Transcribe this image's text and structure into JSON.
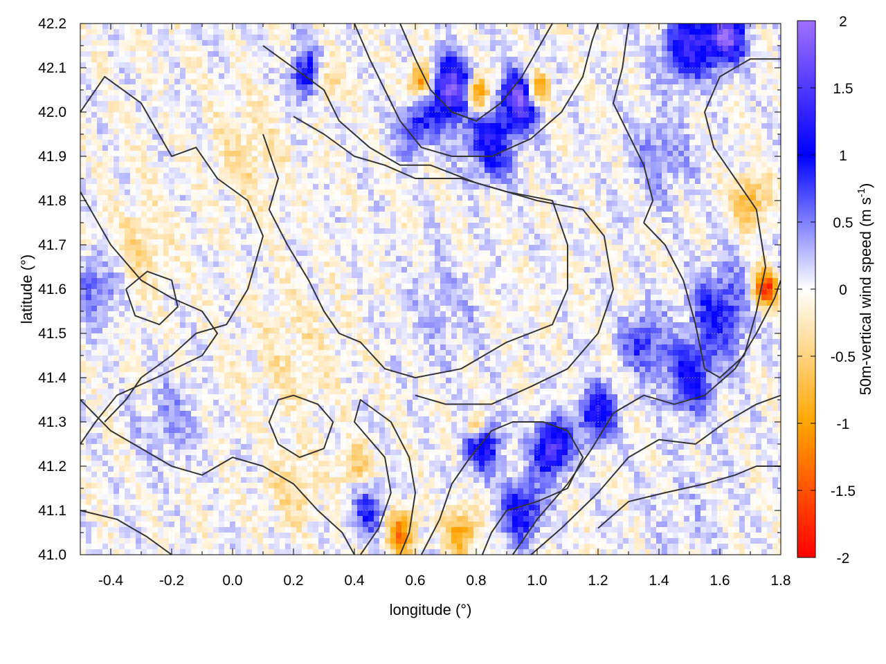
{
  "chart_data": {
    "type": "heatmap",
    "xlabel": "longitude (°)",
    "ylabel": "latitude (°)",
    "colorbar_label": "50m-vertical wind speed (m s",
    "colorbar_label_sup": "-1",
    "colorbar_label_end": ")",
    "xlim": [
      -0.5,
      1.8
    ],
    "ylim": [
      41.0,
      42.2
    ],
    "clim": [
      -2,
      2
    ],
    "x_ticks": [
      {
        "v": -0.4,
        "label": "-0.4"
      },
      {
        "v": -0.2,
        "label": "-0.2"
      },
      {
        "v": 0.0,
        "label": "0.0"
      },
      {
        "v": 0.2,
        "label": "0.2"
      },
      {
        "v": 0.4,
        "label": "0.4"
      },
      {
        "v": 0.6,
        "label": "0.6"
      },
      {
        "v": 0.8,
        "label": "0.8"
      },
      {
        "v": 1.0,
        "label": "1.0"
      },
      {
        "v": 1.2,
        "label": "1.2"
      },
      {
        "v": 1.4,
        "label": "1.4"
      },
      {
        "v": 1.6,
        "label": "1.6"
      },
      {
        "v": 1.8,
        "label": "1.8"
      }
    ],
    "y_ticks": [
      {
        "v": 41.0,
        "label": "41.0"
      },
      {
        "v": 41.1,
        "label": "41.1"
      },
      {
        "v": 41.2,
        "label": "41.2"
      },
      {
        "v": 41.3,
        "label": "41.3"
      },
      {
        "v": 41.4,
        "label": "41.4"
      },
      {
        "v": 41.5,
        "label": "41.5"
      },
      {
        "v": 41.6,
        "label": "41.6"
      },
      {
        "v": 41.7,
        "label": "41.7"
      },
      {
        "v": 41.8,
        "label": "41.8"
      },
      {
        "v": 41.9,
        "label": "41.9"
      },
      {
        "v": 42.0,
        "label": "42.0"
      },
      {
        "v": 42.1,
        "label": "42.1"
      },
      {
        "v": 42.2,
        "label": "42.2"
      }
    ],
    "colorbar_ticks": [
      {
        "v": 2,
        "label": "2"
      },
      {
        "v": 1.5,
        "label": "1.5"
      },
      {
        "v": 1,
        "label": "1"
      },
      {
        "v": 0.5,
        "label": "0.5"
      },
      {
        "v": 0,
        "label": "0"
      },
      {
        "v": -0.5,
        "label": "-0.5"
      },
      {
        "v": -1,
        "label": "-1"
      },
      {
        "v": -1.5,
        "label": "-1.5"
      },
      {
        "v": -2,
        "label": "-2"
      }
    ],
    "colormap": [
      {
        "v": -2.0,
        "color": "#ff0000"
      },
      {
        "v": -1.0,
        "color": "#ffa500"
      },
      {
        "v": 0.0,
        "color": "#ffffff"
      },
      {
        "v": 1.0,
        "color": "#0000ff"
      },
      {
        "v": 2.0,
        "color": "#a070ff"
      }
    ],
    "grid": true,
    "contour_color": "#333333",
    "blobs": [
      {
        "x": 0.72,
        "y": 42.05,
        "r": 0.07,
        "v": 1.9
      },
      {
        "x": 0.95,
        "y": 42.03,
        "r": 0.06,
        "v": 1.9
      },
      {
        "x": 0.8,
        "y": 42.04,
        "r": 0.04,
        "v": -1.7
      },
      {
        "x": 1.0,
        "y": 42.05,
        "r": 0.04,
        "v": -1.6
      },
      {
        "x": 0.62,
        "y": 42.07,
        "r": 0.04,
        "v": -1.3
      },
      {
        "x": 0.3,
        "y": 42.07,
        "r": 0.05,
        "v": -0.9
      },
      {
        "x": 0.25,
        "y": 42.08,
        "r": 0.06,
        "v": 1.2
      },
      {
        "x": 0.85,
        "y": 41.93,
        "r": 0.08,
        "v": 1.1
      },
      {
        "x": 0.6,
        "y": 41.96,
        "r": 0.06,
        "v": 0.9
      },
      {
        "x": 1.5,
        "y": 42.15,
        "r": 0.08,
        "v": 1.3
      },
      {
        "x": 1.62,
        "y": 42.17,
        "r": 0.06,
        "v": 1.8
      },
      {
        "x": 1.7,
        "y": 41.8,
        "r": 0.06,
        "v": -0.8
      },
      {
        "x": 1.6,
        "y": 41.55,
        "r": 0.1,
        "v": 0.9
      },
      {
        "x": 1.5,
        "y": 41.4,
        "r": 0.08,
        "v": 1.0
      },
      {
        "x": 1.35,
        "y": 41.48,
        "r": 0.07,
        "v": 0.8
      },
      {
        "x": 1.2,
        "y": 41.32,
        "r": 0.06,
        "v": 1.3
      },
      {
        "x": 1.05,
        "y": 41.24,
        "r": 0.06,
        "v": 1.6
      },
      {
        "x": 0.82,
        "y": 41.25,
        "r": 0.06,
        "v": 1.2
      },
      {
        "x": 0.8,
        "y": 41.29,
        "r": 0.03,
        "v": -1.3
      },
      {
        "x": 0.95,
        "y": 41.1,
        "r": 0.07,
        "v": 1.1
      },
      {
        "x": 0.75,
        "y": 41.05,
        "r": 0.05,
        "v": -1.0
      },
      {
        "x": 0.55,
        "y": 41.05,
        "r": 0.05,
        "v": -1.2
      },
      {
        "x": 0.45,
        "y": 41.1,
        "r": 0.06,
        "v": 0.8
      },
      {
        "x": 0.4,
        "y": 41.2,
        "r": 0.05,
        "v": -0.6
      },
      {
        "x": 0.7,
        "y": 41.55,
        "r": 0.12,
        "v": 0.25
      },
      {
        "x": 0.2,
        "y": 41.45,
        "r": 0.15,
        "v": -0.25
      },
      {
        "x": -0.3,
        "y": 41.7,
        "r": 0.1,
        "v": -0.35
      },
      {
        "x": -0.45,
        "y": 41.6,
        "r": 0.08,
        "v": 0.6
      },
      {
        "x": -0.2,
        "y": 41.3,
        "r": 0.1,
        "v": 0.35
      },
      {
        "x": 0.05,
        "y": 41.9,
        "r": 0.12,
        "v": -0.3
      },
      {
        "x": 1.4,
        "y": 41.9,
        "r": 0.1,
        "v": 0.45
      },
      {
        "x": 1.75,
        "y": 41.6,
        "r": 0.04,
        "v": -1.8
      },
      {
        "x": 0.2,
        "y": 41.15,
        "r": 0.08,
        "v": -0.4
      },
      {
        "x": 1.5,
        "y": 41.1,
        "r": 0.15,
        "v": 0.15
      }
    ],
    "contours": [
      [
        [
          -0.5,
          42.0
        ],
        [
          -0.42,
          42.08
        ],
        [
          -0.3,
          42.02
        ],
        [
          -0.25,
          41.96
        ],
        [
          -0.2,
          41.9
        ],
        [
          -0.12,
          41.92
        ],
        [
          -0.05,
          41.85
        ],
        [
          0.05,
          41.8
        ],
        [
          0.1,
          41.72
        ],
        [
          0.05,
          41.6
        ],
        [
          -0.02,
          41.52
        ],
        [
          -0.12,
          41.5
        ],
        [
          -0.2,
          41.45
        ],
        [
          -0.3,
          41.4
        ],
        [
          -0.35,
          41.35
        ],
        [
          -0.42,
          41.3
        ]
      ],
      [
        [
          -0.5,
          41.82
        ],
        [
          -0.4,
          41.7
        ],
        [
          -0.3,
          41.62
        ],
        [
          -0.2,
          41.58
        ],
        [
          -0.1,
          41.55
        ],
        [
          -0.05,
          41.5
        ],
        [
          -0.1,
          41.45
        ],
        [
          -0.25,
          41.4
        ],
        [
          -0.38,
          41.36
        ],
        [
          -0.45,
          41.3
        ],
        [
          -0.5,
          41.25
        ]
      ],
      [
        [
          0.1,
          41.95
        ],
        [
          0.15,
          41.85
        ],
        [
          0.12,
          41.78
        ],
        [
          0.18,
          41.7
        ],
        [
          0.25,
          41.62
        ],
        [
          0.3,
          41.55
        ],
        [
          0.35,
          41.5
        ],
        [
          0.42,
          41.48
        ],
        [
          0.5,
          41.42
        ],
        [
          0.6,
          41.4
        ],
        [
          0.75,
          41.42
        ],
        [
          0.9,
          41.48
        ],
        [
          1.05,
          41.52
        ],
        [
          1.1,
          41.6
        ],
        [
          1.1,
          41.7
        ],
        [
          1.05,
          41.8
        ],
        [
          0.9,
          41.82
        ],
        [
          0.75,
          41.85
        ],
        [
          0.6,
          41.85
        ],
        [
          0.5,
          41.88
        ],
        [
          0.4,
          41.9
        ],
        [
          0.3,
          41.95
        ],
        [
          0.2,
          41.99
        ]
      ],
      [
        [
          0.1,
          42.15
        ],
        [
          0.2,
          42.1
        ],
        [
          0.3,
          42.05
        ],
        [
          0.35,
          41.98
        ],
        [
          0.45,
          41.92
        ],
        [
          0.55,
          41.88
        ],
        [
          0.65,
          41.88
        ],
        [
          0.8,
          41.84
        ],
        [
          1.0,
          41.8
        ],
        [
          1.15,
          41.78
        ],
        [
          1.22,
          41.72
        ],
        [
          1.25,
          41.6
        ],
        [
          1.2,
          41.5
        ],
        [
          1.1,
          41.42
        ],
        [
          0.98,
          41.38
        ],
        [
          0.85,
          41.34
        ],
        [
          0.7,
          41.34
        ],
        [
          0.6,
          41.36
        ]
      ],
      [
        [
          -0.5,
          41.35
        ],
        [
          -0.4,
          41.28
        ],
        [
          -0.3,
          41.24
        ],
        [
          -0.2,
          41.2
        ],
        [
          -0.1,
          41.18
        ],
        [
          0.0,
          41.22
        ],
        [
          0.1,
          41.2
        ],
        [
          0.2,
          41.16
        ],
        [
          0.28,
          41.1
        ],
        [
          0.36,
          41.05
        ],
        [
          0.4,
          41.0
        ]
      ],
      [
        [
          -0.5,
          41.1
        ],
        [
          -0.38,
          41.08
        ],
        [
          -0.28,
          41.04
        ],
        [
          -0.2,
          41.0
        ]
      ],
      [
        [
          0.42,
          41.0
        ],
        [
          0.48,
          41.06
        ],
        [
          0.52,
          41.14
        ],
        [
          0.5,
          41.22
        ],
        [
          0.45,
          41.26
        ],
        [
          0.4,
          41.3
        ],
        [
          0.42,
          41.35
        ],
        [
          0.52,
          41.3
        ],
        [
          0.58,
          41.22
        ],
        [
          0.6,
          41.14
        ],
        [
          0.58,
          41.05
        ],
        [
          0.55,
          41.0
        ]
      ],
      [
        [
          0.62,
          41.0
        ],
        [
          0.68,
          41.08
        ],
        [
          0.72,
          41.16
        ],
        [
          0.78,
          41.22
        ],
        [
          0.85,
          41.28
        ],
        [
          0.92,
          41.3
        ],
        [
          1.02,
          41.3
        ],
        [
          1.1,
          41.28
        ],
        [
          1.15,
          41.22
        ],
        [
          1.1,
          41.15
        ],
        [
          1.0,
          41.12
        ],
        [
          0.9,
          41.1
        ],
        [
          0.85,
          41.05
        ],
        [
          0.82,
          41.0
        ]
      ],
      [
        [
          0.92,
          41.0
        ],
        [
          1.0,
          41.08
        ],
        [
          1.1,
          41.16
        ],
        [
          1.18,
          41.24
        ],
        [
          1.25,
          41.32
        ],
        [
          1.35,
          41.36
        ],
        [
          1.45,
          41.34
        ],
        [
          1.55,
          41.36
        ],
        [
          1.65,
          41.42
        ],
        [
          1.72,
          41.5
        ],
        [
          1.78,
          41.58
        ],
        [
          1.8,
          41.62
        ]
      ],
      [
        [
          0.98,
          41.0
        ],
        [
          1.08,
          41.06
        ],
        [
          1.2,
          41.14
        ],
        [
          1.3,
          41.22
        ],
        [
          1.4,
          41.26
        ],
        [
          1.52,
          41.25
        ],
        [
          1.62,
          41.3
        ],
        [
          1.72,
          41.34
        ],
        [
          1.8,
          41.36
        ]
      ],
      [
        [
          1.2,
          41.06
        ],
        [
          1.3,
          41.12
        ],
        [
          1.42,
          41.14
        ],
        [
          1.55,
          41.16
        ],
        [
          1.65,
          41.18
        ],
        [
          1.72,
          41.2
        ],
        [
          1.8,
          41.2
        ]
      ],
      [
        [
          1.35,
          41.75
        ],
        [
          1.42,
          41.7
        ],
        [
          1.48,
          41.62
        ],
        [
          1.52,
          41.52
        ],
        [
          1.55,
          41.42
        ],
        [
          1.6,
          41.4
        ],
        [
          1.68,
          41.45
        ],
        [
          1.72,
          41.55
        ],
        [
          1.75,
          41.65
        ],
        [
          1.72,
          41.78
        ],
        [
          1.65,
          41.85
        ],
        [
          1.58,
          41.92
        ],
        [
          1.55,
          42.0
        ],
        [
          1.6,
          42.08
        ],
        [
          1.7,
          42.12
        ],
        [
          1.8,
          42.12
        ]
      ],
      [
        [
          1.3,
          42.2
        ],
        [
          1.28,
          42.1
        ],
        [
          1.25,
          42.02
        ],
        [
          1.3,
          41.95
        ],
        [
          1.35,
          41.88
        ],
        [
          1.38,
          41.8
        ],
        [
          1.35,
          41.75
        ]
      ],
      [
        [
          0.55,
          42.2
        ],
        [
          0.6,
          42.12
        ],
        [
          0.65,
          42.05
        ],
        [
          0.72,
          42.0
        ],
        [
          0.8,
          41.98
        ],
        [
          0.88,
          42.02
        ],
        [
          0.95,
          42.08
        ],
        [
          1.0,
          42.14
        ],
        [
          1.05,
          42.2
        ]
      ],
      [
        [
          0.4,
          42.2
        ],
        [
          0.45,
          42.12
        ],
        [
          0.5,
          42.05
        ],
        [
          0.55,
          41.98
        ],
        [
          0.62,
          41.92
        ],
        [
          0.72,
          41.9
        ],
        [
          0.85,
          41.9
        ],
        [
          0.98,
          41.94
        ],
        [
          1.08,
          42.0
        ],
        [
          1.15,
          42.08
        ],
        [
          1.18,
          42.16
        ],
        [
          1.2,
          42.2
        ]
      ],
      [
        [
          0.2,
          41.36
        ],
        [
          0.28,
          41.34
        ],
        [
          0.33,
          41.3
        ],
        [
          0.3,
          41.24
        ],
        [
          0.22,
          41.22
        ],
        [
          0.15,
          41.25
        ],
        [
          0.12,
          41.3
        ],
        [
          0.15,
          41.35
        ],
        [
          0.2,
          41.36
        ]
      ],
      [
        [
          -0.35,
          41.6
        ],
        [
          -0.28,
          41.64
        ],
        [
          -0.2,
          41.62
        ],
        [
          -0.18,
          41.56
        ],
        [
          -0.24,
          41.52
        ],
        [
          -0.32,
          41.54
        ],
        [
          -0.35,
          41.6
        ]
      ]
    ]
  }
}
